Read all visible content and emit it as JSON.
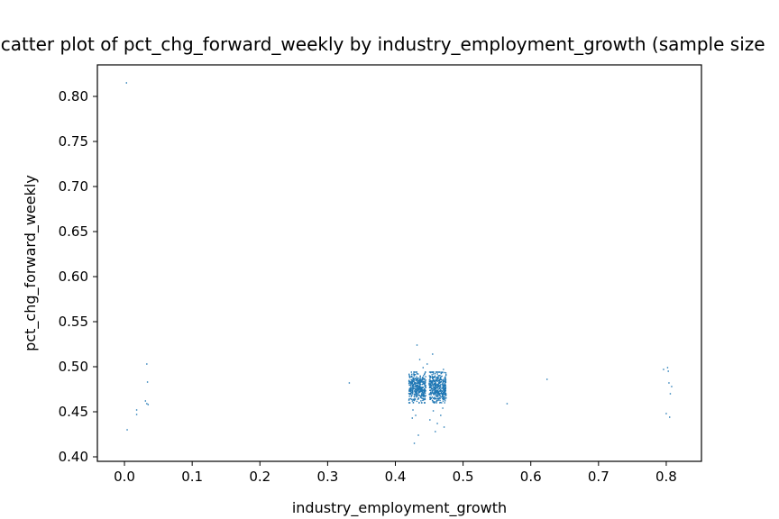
{
  "chart_data": {
    "type": "scatter",
    "title": "Scatter plot of pct_chg_forward_weekly by industry_employment_growth (sample size",
    "xlabel": "industry_employment_growth",
    "ylabel": "pct_chg_forward_weekly",
    "xlim": [
      -0.04,
      0.852
    ],
    "ylim": [
      0.395,
      0.835
    ],
    "xticks": [
      "0.0",
      "0.1",
      "0.2",
      "0.3",
      "0.4",
      "0.5",
      "0.6",
      "0.7",
      "0.8"
    ],
    "yticks": [
      "0.40",
      "0.45",
      "0.50",
      "0.55",
      "0.60",
      "0.65",
      "0.70",
      "0.75",
      "0.80"
    ],
    "grid": false,
    "marker_color": "#1f77b4",
    "points": [
      [
        0.003,
        0.815
      ],
      [
        0.004,
        0.43
      ],
      [
        0.018,
        0.452
      ],
      [
        0.018,
        0.447
      ],
      [
        0.033,
        0.503
      ],
      [
        0.034,
        0.483
      ],
      [
        0.031,
        0.462
      ],
      [
        0.033,
        0.459
      ],
      [
        0.035,
        0.458
      ],
      [
        0.332,
        0.482
      ],
      [
        0.565,
        0.459
      ],
      [
        0.624,
        0.486
      ],
      [
        0.796,
        0.497
      ],
      [
        0.802,
        0.499
      ],
      [
        0.803,
        0.495
      ],
      [
        0.804,
        0.482
      ],
      [
        0.806,
        0.47
      ],
      [
        0.808,
        0.478
      ],
      [
        0.8,
        0.448
      ],
      [
        0.805,
        0.444
      ],
      [
        0.432,
        0.524
      ],
      [
        0.455,
        0.514
      ],
      [
        0.436,
        0.508
      ],
      [
        0.447,
        0.503
      ],
      [
        0.441,
        0.499
      ],
      [
        0.471,
        0.497
      ],
      [
        0.428,
        0.415
      ],
      [
        0.434,
        0.424
      ],
      [
        0.459,
        0.428
      ],
      [
        0.472,
        0.433
      ],
      [
        0.425,
        0.443
      ],
      [
        0.451,
        0.441
      ],
      [
        0.467,
        0.446
      ],
      [
        0.426,
        0.452
      ],
      [
        0.456,
        0.451
      ],
      [
        0.47,
        0.454
      ],
      [
        0.43,
        0.446
      ],
      [
        0.462,
        0.437
      ]
    ],
    "clusters": [
      {
        "x_range": [
          0.42,
          0.445
        ],
        "y_center": 0.477,
        "y_spread": 0.017,
        "count": 380
      },
      {
        "x_range": [
          0.45,
          0.475
        ],
        "y_center": 0.477,
        "y_spread": 0.017,
        "count": 420
      }
    ]
  }
}
